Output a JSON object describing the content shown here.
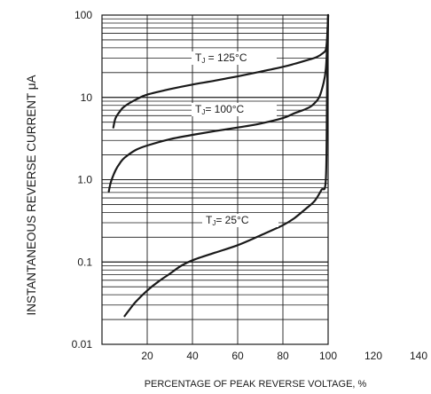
{
  "chart_data": {
    "type": "line",
    "title": "",
    "xlabel": "PERCENTAGE OF PEAK REVERSE VOLTAGE, %",
    "ylabel": "INSTANTANEOUS REVERSE CURRENT μA",
    "xlim": [
      0,
      140
    ],
    "ylim": [
      0.01,
      100
    ],
    "yscale": "log",
    "x_ticks": [
      "20",
      "40",
      "60",
      "80",
      "100",
      "120",
      "140"
    ],
    "y_ticks": [
      "0.01",
      "0.1",
      "1.0",
      "10",
      "100"
    ],
    "grid": "minor log lines on y, vertical lines every 20 on x",
    "series": [
      {
        "name": "TJ = 125°C",
        "label_main": "T",
        "label_sub": "J",
        "label_rest": " = 125°C",
        "x": [
          5,
          6,
          8,
          10,
          15,
          20,
          30,
          40,
          50,
          60,
          70,
          80,
          85,
          90,
          95,
          98,
          99,
          99.5,
          100
        ],
        "y": [
          4.3,
          5.6,
          6.8,
          7.8,
          9.4,
          10.8,
          12.6,
          14.3,
          16.0,
          18.0,
          20.5,
          23.5,
          25.5,
          28,
          31,
          35,
          38,
          50,
          100
        ]
      },
      {
        "name": "TJ = 100°C",
        "label_main": "T",
        "label_sub": "J",
        "label_rest": "= 100°C",
        "x": [
          3,
          4,
          6,
          8,
          10,
          15,
          20,
          30,
          40,
          50,
          60,
          70,
          80,
          85,
          90,
          93,
          96,
          98,
          99,
          99.5,
          100
        ],
        "y": [
          0.72,
          0.95,
          1.3,
          1.6,
          1.85,
          2.3,
          2.6,
          3.1,
          3.5,
          3.9,
          4.3,
          4.8,
          5.6,
          6.4,
          7.2,
          8.0,
          10,
          15,
          22,
          40,
          100
        ]
      },
      {
        "name": "TJ = 25°C",
        "label_main": "T",
        "label_sub": "J",
        "label_rest": "= 25°C",
        "x": [
          10,
          12,
          15,
          20,
          25,
          30,
          35,
          40,
          50,
          60,
          70,
          80,
          85,
          90,
          94,
          97,
          99,
          99.5,
          100
        ],
        "y": [
          0.022,
          0.026,
          0.033,
          0.045,
          0.058,
          0.072,
          0.09,
          0.105,
          0.13,
          0.16,
          0.21,
          0.28,
          0.34,
          0.44,
          0.55,
          0.75,
          1.0,
          10,
          100
        ]
      }
    ]
  }
}
